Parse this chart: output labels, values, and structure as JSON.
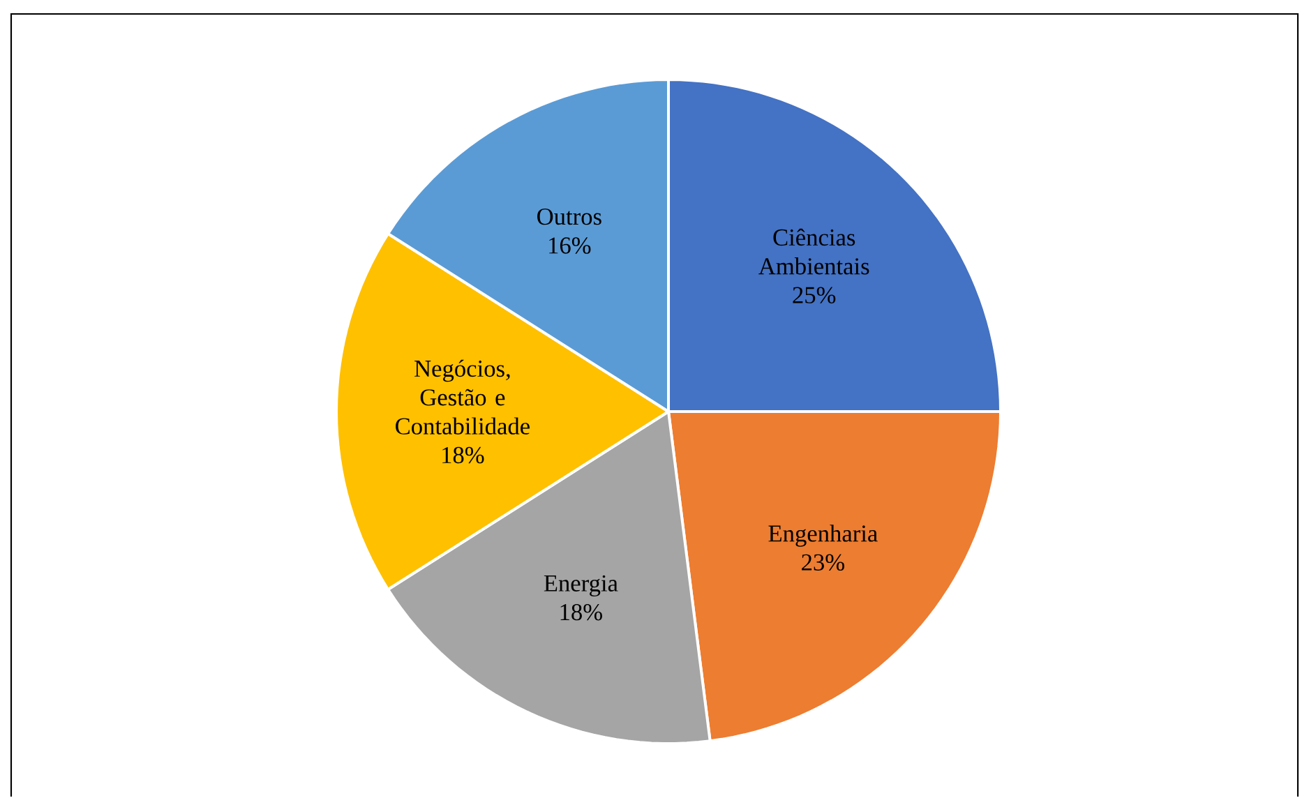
{
  "chart_data": {
    "type": "pie",
    "categories": [
      "Ciências Ambientais",
      "Engenharia",
      "Energia",
      "Negócios, Gestão e Contabilidade",
      "Outros"
    ],
    "values": [
      25,
      23,
      18,
      18,
      16
    ],
    "value_labels": [
      "25%",
      "23%",
      "18%",
      "18%",
      "16%"
    ],
    "colors": [
      "#4472c4",
      "#ed7d31",
      "#a5a5a5",
      "#ffc000",
      "#5b9bd5"
    ]
  }
}
